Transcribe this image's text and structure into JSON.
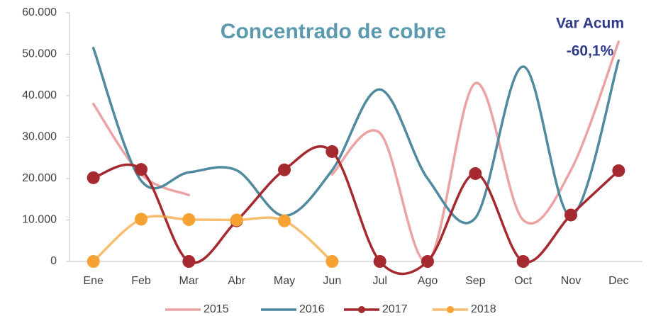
{
  "chart_data": {
    "type": "line",
    "title": "Concentrado de cobre",
    "annotations": [
      "Var Acum",
      "-60,1%"
    ],
    "categories": [
      "Ene",
      "Feb",
      "Mar",
      "Abr",
      "May",
      "Jun",
      "Jul",
      "Ago",
      "Sep",
      "Oct",
      "Nov",
      "Dec"
    ],
    "series": [
      {
        "name": "2015",
        "color": "#eba3a3",
        "markers": false,
        "values": [
          38000,
          21000,
          16000,
          null,
          null,
          21000,
          31000,
          0,
          43000,
          10000,
          22000,
          53000
        ]
      },
      {
        "name": "2016",
        "color": "#4f8a9e",
        "markers": false,
        "values": [
          51500,
          19500,
          21500,
          22000,
          11000,
          22000,
          41500,
          20000,
          10500,
          47000,
          11000,
          48500
        ]
      },
      {
        "name": "2017",
        "color": "#a52a30",
        "markers": true,
        "values": [
          20200,
          22200,
          0,
          9800,
          22100,
          26500,
          0,
          0,
          21200,
          0,
          11200,
          21900
        ]
      },
      {
        "name": "2018",
        "color": "#f5a232",
        "markers": true,
        "values": [
          0,
          10200,
          10100,
          10000,
          9800,
          0,
          null,
          null,
          null,
          null,
          null,
          null
        ]
      }
    ],
    "ylim": [
      0,
      60000
    ],
    "yticks": [
      0,
      {
        "value": 10000,
        "label": "10.000"
      },
      {
        "value": 20000,
        "label": "20.000"
      },
      {
        "value": 30000,
        "label": "30.000"
      },
      {
        "value": 40000,
        "label": "40.000"
      },
      {
        "value": 50000,
        "label": "50.000"
      },
      {
        "value": 60000,
        "label": "60.000"
      }
    ],
    "legend": "bottom",
    "smooth": true
  }
}
